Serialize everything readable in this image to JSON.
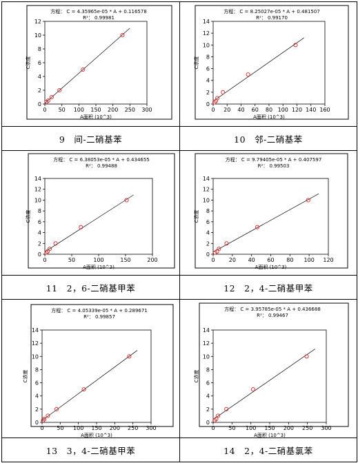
{
  "colors": {
    "frame": "#000000",
    "point": "#d62a2a",
    "line": "#000000"
  },
  "charts": [
    {
      "caption": "",
      "chart_data": {
        "type": "scatter",
        "equation": "方程： C = 4.35965e-05 * A + 0.116578",
        "r2": "R²： 0.99981",
        "xlabel": "A面积 (10^3)",
        "ylabel": "C浓度",
        "xlim": [
          0,
          300
        ],
        "ylim": [
          0,
          12
        ],
        "xticks": [
          0,
          50,
          100,
          150,
          200,
          250,
          300
        ],
        "yticks": [
          0,
          2,
          4,
          6,
          8,
          10,
          12
        ],
        "slope": 0.0435965,
        "intercept": 0.116578,
        "fit_x": [
          0,
          250
        ],
        "x": [
          5,
          10,
          20,
          43,
          112,
          228
        ],
        "y": [
          0.3,
          0.5,
          1.0,
          2.0,
          5.0,
          10.0
        ]
      }
    },
    {
      "caption": "",
      "chart_data": {
        "type": "scatter",
        "equation": "方程： C = 8.25027e-05 * A + 0.481507",
        "r2": "R²： 0.99170",
        "xlabel": "A面积 (10^3)",
        "ylabel": "C浓度",
        "xlim": [
          0,
          160
        ],
        "ylim": [
          0,
          14
        ],
        "xticks": [
          0,
          20,
          40,
          60,
          80,
          100,
          120,
          140,
          160
        ],
        "yticks": [
          0,
          2,
          4,
          6,
          8,
          10,
          12,
          14
        ],
        "slope": 0.0825027,
        "intercept": 0.481507,
        "fit_x": [
          0,
          130
        ],
        "x": [
          2,
          4,
          6,
          14,
          50,
          118
        ],
        "y": [
          0.3,
          0.5,
          1.0,
          2.0,
          5.0,
          10.0
        ]
      }
    },
    {
      "caption": "9　间-二硝基苯",
      "chart_data": {
        "type": "scatter",
        "equation": "方程： C = 6.38053e-05 * A + 0.434655",
        "r2": "R²： 0.99488",
        "xlabel": "A面积 (10^3)",
        "ylabel": "C浓度",
        "xlim": [
          0,
          200
        ],
        "ylim": [
          0,
          14
        ],
        "xticks": [
          0,
          50,
          100,
          150,
          200
        ],
        "yticks": [
          0,
          2,
          4,
          6,
          8,
          10,
          12,
          14
        ],
        "slope": 0.0638053,
        "intercept": 0.434655,
        "fit_x": [
          0,
          165
        ],
        "x": [
          3,
          5,
          9,
          20,
          67,
          152
        ],
        "y": [
          0.3,
          0.5,
          1.0,
          2.0,
          5.0,
          10.0
        ]
      }
    },
    {
      "caption": "10　邻-二硝基苯",
      "chart_data": {
        "type": "scatter",
        "equation": "方程： C = 9.79405e-05 * A + 0.407597",
        "r2": "R²： 0.99503",
        "xlabel": "A面积 (10^3)",
        "ylabel": "C浓度",
        "xlim": [
          0,
          120
        ],
        "ylim": [
          0,
          14
        ],
        "xticks": [
          0,
          20,
          40,
          60,
          80,
          100,
          120
        ],
        "yticks": [
          0,
          2,
          4,
          6,
          8,
          10,
          12,
          14
        ],
        "slope": 0.0979405,
        "intercept": 0.407597,
        "fit_x": [
          0,
          110
        ],
        "x": [
          2,
          4,
          6,
          14,
          46,
          99
        ],
        "y": [
          0.3,
          0.5,
          1.0,
          2.0,
          5.0,
          10.0
        ]
      }
    },
    {
      "caption": "11　2，6-二硝基甲苯",
      "chart_data": {
        "type": "scatter",
        "equation": "方程： C = 4.05339e-05 * A + 0.289671",
        "r2": "R²： 0.99857",
        "xlabel": "A面积 (10^3)",
        "ylabel": "C浓度",
        "xlim": [
          0,
          300
        ],
        "ylim": [
          0,
          14
        ],
        "xticks": [
          0,
          50,
          100,
          150,
          200,
          250,
          300
        ],
        "yticks": [
          0,
          2,
          4,
          6,
          8,
          10,
          12,
          14
        ],
        "slope": 0.0405339,
        "intercept": 0.289671,
        "fit_x": [
          0,
          262
        ],
        "x": [
          3,
          6,
          16,
          40,
          115,
          240
        ],
        "y": [
          0.3,
          0.5,
          1.0,
          2.0,
          5.0,
          10.0
        ]
      }
    },
    {
      "caption": "12　2，4-二硝基甲苯",
      "chart_data": {
        "type": "scatter",
        "equation": "方程： C = 3.95785e-05 * A + 0.436688",
        "r2": "R²： 0.99467",
        "xlabel": "A面积 (10^3)",
        "ylabel": "C浓度",
        "xlim": [
          0,
          300
        ],
        "ylim": [
          0,
          14
        ],
        "xticks": [
          0,
          50,
          100,
          150,
          200,
          250,
          300
        ],
        "yticks": [
          0,
          2,
          4,
          6,
          8,
          10,
          12,
          14
        ],
        "slope": 0.0395785,
        "intercept": 0.436688,
        "fit_x": [
          0,
          270
        ],
        "x": [
          4,
          8,
          13,
          35,
          106,
          248
        ],
        "y": [
          0.3,
          0.5,
          1.0,
          2.0,
          5.0,
          10.0
        ]
      }
    }
  ],
  "bottom_captions": [
    "13　3，4-二硝基甲苯",
    "14　2，4-二硝基氯苯"
  ]
}
